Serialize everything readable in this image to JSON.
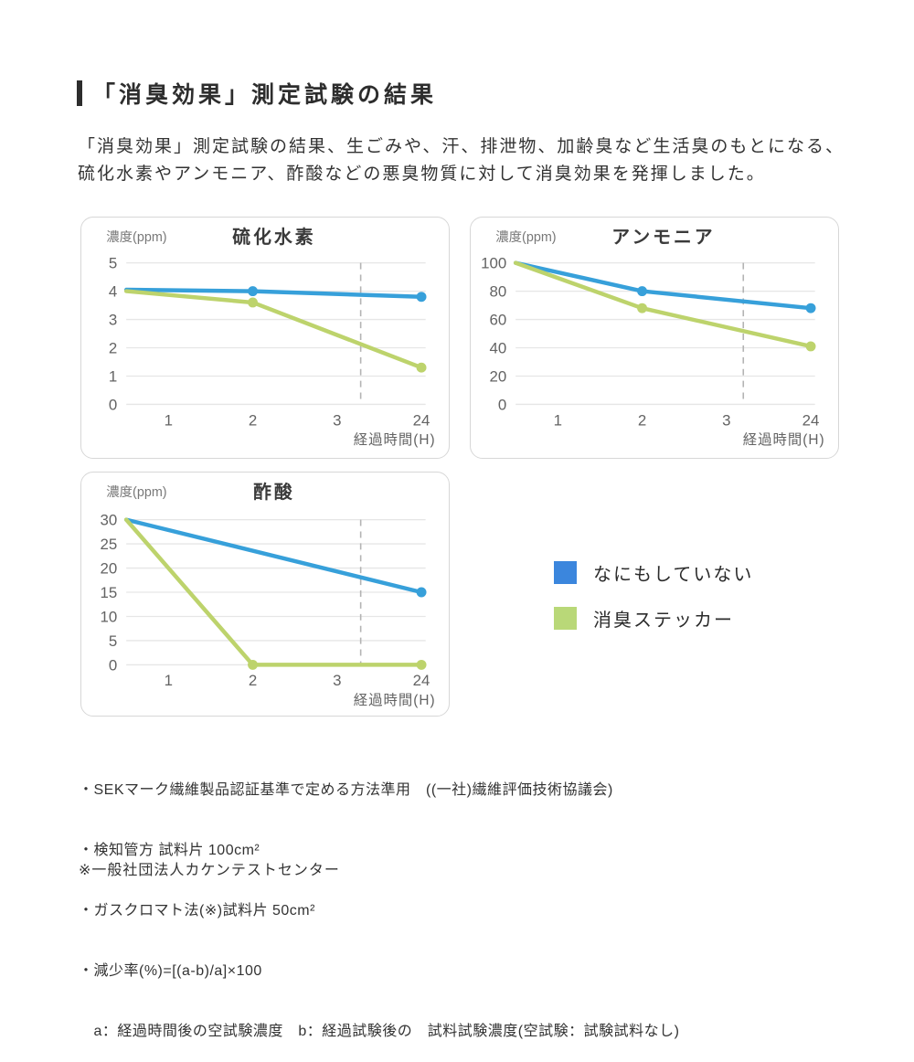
{
  "header": {
    "title": "「消臭効果」測定試験の結果"
  },
  "intro": {
    "line1": "「消臭効果」測定試験の結果、生ごみや、汗、排泄物、加齢臭など生活臭のもとになる、",
    "line2": "硫化水素やアンモニア、酢酸などの悪臭物質に対して消臭効果を発揮しました。"
  },
  "colors": {
    "line_blue": "#37a0da",
    "line_green": "#bdd36c",
    "legend_blue": "#3b86dd",
    "legend_green": "#b9d878",
    "grid": "#e6e6e6",
    "dashed": "#b3b3b3"
  },
  "legend": {
    "items": [
      {
        "label": "なにもしていない",
        "color": "#3b86dd"
      },
      {
        "label": "消臭ステッカー",
        "color": "#b9d878"
      }
    ]
  },
  "chart_data": [
    {
      "type": "line",
      "title": "硫化水素",
      "ylabel": "濃度(ppm)",
      "xlabel": "経過時間(H)",
      "x_tick_labels": [
        "1",
        "2",
        "3",
        "24"
      ],
      "ylim": [
        0,
        5
      ],
      "yticks": [
        0,
        1,
        2,
        3,
        4,
        5
      ],
      "dashed_marker_between": "3h and 24h",
      "dashed_x_unit": 3.28,
      "grid": true,
      "series": [
        {
          "name": "なにもしていない",
          "color": "#37a0da",
          "points": [
            [
              0,
              4.05
            ],
            [
              2,
              4.0
            ],
            [
              24,
              3.8
            ]
          ],
          "dots": [
            [
              2,
              4.0
            ],
            [
              24,
              3.8
            ]
          ]
        },
        {
          "name": "消臭ステッカー",
          "color": "#bdd36c",
          "points": [
            [
              0,
              4.0
            ],
            [
              2,
              3.6
            ],
            [
              24,
              1.3
            ]
          ],
          "dots": [
            [
              2,
              3.6
            ],
            [
              24,
              1.3
            ]
          ]
        }
      ]
    },
    {
      "type": "line",
      "title": "アンモニア",
      "ylabel": "濃度(ppm)",
      "xlabel": "経過時間(H)",
      "x_tick_labels": [
        "1",
        "2",
        "3",
        "24"
      ],
      "ylim": [
        0,
        100
      ],
      "yticks": [
        0,
        20,
        40,
        60,
        80,
        100
      ],
      "dashed_marker_between": "3h and 24h",
      "dashed_x_unit": 3.2,
      "grid": true,
      "series": [
        {
          "name": "なにもしていない",
          "color": "#37a0da",
          "points": [
            [
              0,
              100
            ],
            [
              2,
              80
            ],
            [
              24,
              68
            ]
          ],
          "dots": [
            [
              2,
              80
            ],
            [
              24,
              68
            ]
          ]
        },
        {
          "name": "消臭ステッカー",
          "color": "#bdd36c",
          "points": [
            [
              0,
              100
            ],
            [
              2,
              68
            ],
            [
              24,
              41
            ]
          ],
          "dots": [
            [
              2,
              68
            ],
            [
              24,
              41
            ]
          ]
        }
      ]
    },
    {
      "type": "line",
      "title": "酢酸",
      "ylabel": "濃度(ppm)",
      "xlabel": "経過時間(H)",
      "x_tick_labels": [
        "1",
        "2",
        "3",
        "24"
      ],
      "ylim": [
        0,
        30
      ],
      "yticks": [
        0,
        5,
        10,
        15,
        20,
        25,
        30
      ],
      "dashed_marker_between": "3h and 24h",
      "dashed_x_unit": 3.28,
      "grid": true,
      "series": [
        {
          "name": "なにもしていない",
          "color": "#37a0da",
          "points": [
            [
              0,
              30
            ],
            [
              24,
              15
            ]
          ],
          "dots": [
            [
              24,
              15
            ]
          ]
        },
        {
          "name": "消臭ステッカー",
          "color": "#bdd36c",
          "points": [
            [
              0,
              30
            ],
            [
              2,
              0
            ],
            [
              24,
              0
            ]
          ],
          "dots": [
            [
              2,
              0
            ],
            [
              24,
              0
            ]
          ]
        }
      ]
    }
  ],
  "footnotes": {
    "notes": [
      "・SEKマーク繊維製品認証基準で定める方法準用　((一社)繊維評価技術協議会)",
      "・検知管方 試料片 100cm²",
      "・ガスクロマト法(※)試料片 50cm²",
      "・減少率(%)=[(a-b)/a]×100",
      "　a：経過時間後の空試験濃度　b：経過試験後の　試料試験濃度(空試験：試験試料なし)"
    ],
    "source": "※一般社団法人カケンテストセンター"
  }
}
